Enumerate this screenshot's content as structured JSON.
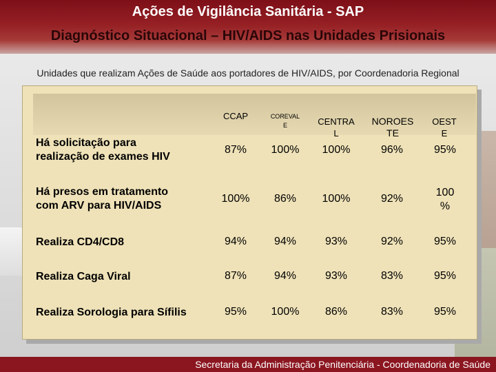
{
  "header": {
    "title": "Ações de Vigilância Sanitária - SAP",
    "subtitle": "Diagnóstico Situacional – HIV/AIDS nas Unidades Prisionais"
  },
  "description": "Unidades que realizam Ações de Saúde aos portadores de HIV/AIDS, por Coordenadoria Regional",
  "table": {
    "columns": [
      "CCAP",
      "COREVAL\nE",
      "CENTRA\nL",
      "NOROES\nTE",
      "OEST\nE"
    ],
    "rows": [
      {
        "label": "Há solicitação para\nrealização de exames HIV",
        "values": [
          "87%",
          "100%",
          "100%",
          "96%",
          "95%"
        ]
      },
      {
        "label": "Há presos em tratamento\ncom ARV para HIV/AIDS",
        "values": [
          "100%",
          "86%",
          "100%",
          "92%",
          "100\n%"
        ]
      },
      {
        "label": "Realiza CD4/CD8",
        "values": [
          "94%",
          "94%",
          "93%",
          "92%",
          "95%"
        ]
      },
      {
        "label": "Realiza Caga Viral",
        "values": [
          "87%",
          "94%",
          "93%",
          "83%",
          "95%"
        ]
      },
      {
        "label": "Realiza Sorologia para Sífilis",
        "values": [
          "95%",
          "100%",
          "86%",
          "83%",
          "95%"
        ]
      }
    ]
  },
  "footer": {
    "text": "Secretaria da Administração Penitenciária - Coordenadoria de Saúde"
  }
}
